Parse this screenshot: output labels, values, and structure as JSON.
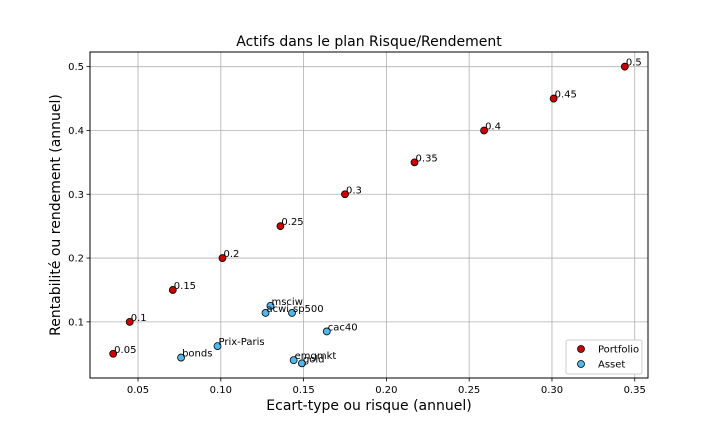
{
  "chart_data": {
    "type": "scatter",
    "title": "Actifs dans le plan Risque/Rendement",
    "xlabel": "Ecart-type ou risque (annuel)",
    "ylabel": "Rentabilité ou rendement (annuel)",
    "xlim": [
      0.021,
      0.358
    ],
    "ylim": [
      0.012,
      0.523
    ],
    "xticks": [
      "0.05",
      "0.10",
      "0.15",
      "0.20",
      "0.25",
      "0.30",
      "0.35"
    ],
    "yticks": [
      "0.1",
      "0.2",
      "0.3",
      "0.4",
      "0.5"
    ],
    "grid": true,
    "legend_position": "bottom-right",
    "series": [
      {
        "name": "Portfolio",
        "color": "#cc0000",
        "points": [
          {
            "x": 0.035,
            "y": 0.05,
            "label": "0.05"
          },
          {
            "x": 0.045,
            "y": 0.1,
            "label": "0.1"
          },
          {
            "x": 0.071,
            "y": 0.15,
            "label": "0.15"
          },
          {
            "x": 0.101,
            "y": 0.2,
            "label": "0.2"
          },
          {
            "x": 0.136,
            "y": 0.25,
            "label": "0.25"
          },
          {
            "x": 0.175,
            "y": 0.3,
            "label": "0.3"
          },
          {
            "x": 0.217,
            "y": 0.35,
            "label": "0.35"
          },
          {
            "x": 0.259,
            "y": 0.4,
            "label": "0.4"
          },
          {
            "x": 0.301,
            "y": 0.45,
            "label": "0.45"
          },
          {
            "x": 0.344,
            "y": 0.5,
            "label": "0.5"
          }
        ]
      },
      {
        "name": "Asset",
        "color": "#4fb8ec",
        "points": [
          {
            "x": 0.076,
            "y": 0.044,
            "label": "bonds"
          },
          {
            "x": 0.098,
            "y": 0.062,
            "label": "Prix-Paris"
          },
          {
            "x": 0.127,
            "y": 0.114,
            "label": "acwi"
          },
          {
            "x": 0.13,
            "y": 0.125,
            "label": "msciw"
          },
          {
            "x": 0.143,
            "y": 0.114,
            "label": "sp500"
          },
          {
            "x": 0.164,
            "y": 0.085,
            "label": "cac40"
          },
          {
            "x": 0.144,
            "y": 0.04,
            "label": "emgmkt"
          },
          {
            "x": 0.149,
            "y": 0.035,
            "label": "gold"
          }
        ]
      }
    ]
  }
}
